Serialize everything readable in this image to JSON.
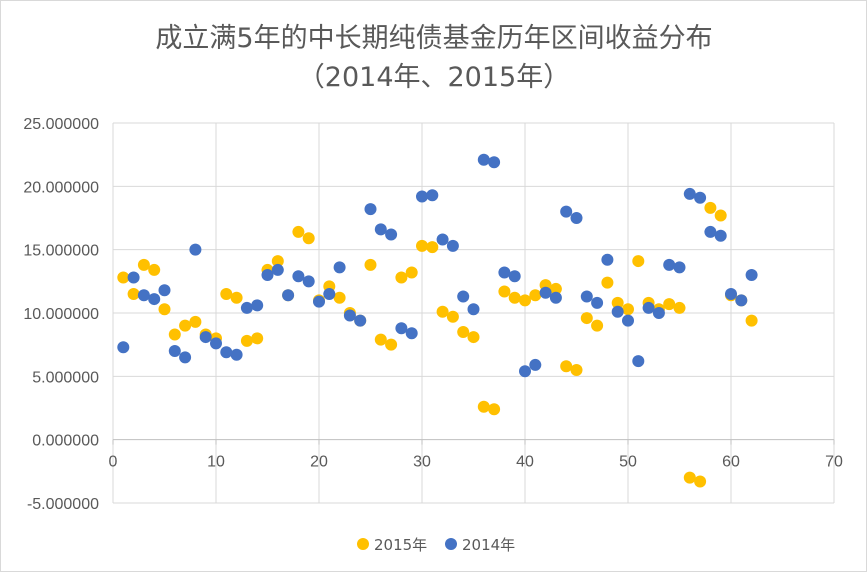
{
  "chart_data": {
    "type": "scatter",
    "title": "成立满5年的中长期纯债基金历年区间收益分布",
    "subtitle": "（2014年、2015年）",
    "xlim": [
      0,
      70
    ],
    "ylim": [
      -5,
      25
    ],
    "x_ticks": [
      "0",
      "10",
      "20",
      "30",
      "40",
      "50",
      "60",
      "70"
    ],
    "y_ticks": [
      "25.000000",
      "20.000000",
      "15.000000",
      "10.000000",
      "5.000000",
      "0.000000",
      "-5.000000"
    ],
    "y_tick_values": [
      25,
      20,
      15,
      10,
      5,
      0,
      -5
    ],
    "x_tick_values": [
      0,
      10,
      20,
      30,
      40,
      50,
      60,
      70
    ],
    "grid": true,
    "legend_position": "bottom",
    "series": [
      {
        "name": "2015年",
        "color": "#ffc000",
        "x": [
          1,
          2,
          3,
          4,
          5,
          6,
          7,
          8,
          9,
          10,
          11,
          12,
          13,
          14,
          15,
          16,
          17,
          18,
          19,
          20,
          21,
          22,
          23,
          24,
          25,
          26,
          27,
          28,
          29,
          30,
          31,
          32,
          33,
          34,
          35,
          36,
          37,
          38,
          39,
          40,
          41,
          42,
          43,
          44,
          45,
          46,
          47,
          48,
          49,
          50,
          51,
          52,
          53,
          54,
          55,
          56,
          57,
          58,
          59,
          60,
          61,
          62
        ],
        "y": [
          12.8,
          11.5,
          13.8,
          13.4,
          10.3,
          8.3,
          9.0,
          9.3,
          8.3,
          8.0,
          11.5,
          11.2,
          7.8,
          8.0,
          13.4,
          14.1,
          11.4,
          16.4,
          15.9,
          11.0,
          12.1,
          11.2,
          10.0,
          9.4,
          13.8,
          7.9,
          7.5,
          12.8,
          13.2,
          15.3,
          15.2,
          10.1,
          9.7,
          8.5,
          8.1,
          2.6,
          2.4,
          11.7,
          11.2,
          11.0,
          11.4,
          12.2,
          11.9,
          5.8,
          5.5,
          9.6,
          9.0,
          12.4,
          10.8,
          10.3,
          14.1,
          10.8,
          10.3,
          10.7,
          10.4,
          -3.0,
          -3.3,
          18.3,
          17.7,
          11.4,
          11.0,
          9.4
        ]
      },
      {
        "name": "2014年",
        "color": "#4472c4",
        "x": [
          1,
          2,
          3,
          4,
          5,
          6,
          7,
          8,
          9,
          10,
          11,
          12,
          13,
          14,
          15,
          16,
          17,
          18,
          19,
          20,
          21,
          22,
          23,
          24,
          25,
          26,
          27,
          28,
          29,
          30,
          31,
          32,
          33,
          34,
          35,
          36,
          37,
          38,
          39,
          40,
          41,
          42,
          43,
          44,
          45,
          46,
          47,
          48,
          49,
          50,
          51,
          52,
          53,
          54,
          55,
          56,
          57,
          58,
          59,
          60,
          61,
          62
        ],
        "y": [
          7.3,
          12.8,
          11.4,
          11.1,
          11.8,
          7.0,
          6.5,
          15.0,
          8.1,
          7.6,
          6.9,
          6.7,
          10.4,
          10.6,
          13.0,
          13.4,
          11.4,
          12.9,
          12.5,
          10.9,
          11.5,
          13.6,
          9.8,
          9.4,
          18.2,
          16.6,
          16.2,
          8.8,
          8.4,
          19.2,
          19.3,
          15.8,
          15.3,
          11.3,
          10.3,
          22.1,
          21.9,
          13.2,
          12.9,
          5.4,
          5.9,
          11.6,
          11.2,
          18.0,
          17.5,
          11.3,
          10.8,
          14.2,
          10.1,
          9.4,
          6.2,
          10.4,
          10.0,
          13.8,
          13.6,
          19.4,
          19.1,
          16.4,
          16.1,
          11.5,
          11.0,
          13.0
        ]
      }
    ]
  }
}
